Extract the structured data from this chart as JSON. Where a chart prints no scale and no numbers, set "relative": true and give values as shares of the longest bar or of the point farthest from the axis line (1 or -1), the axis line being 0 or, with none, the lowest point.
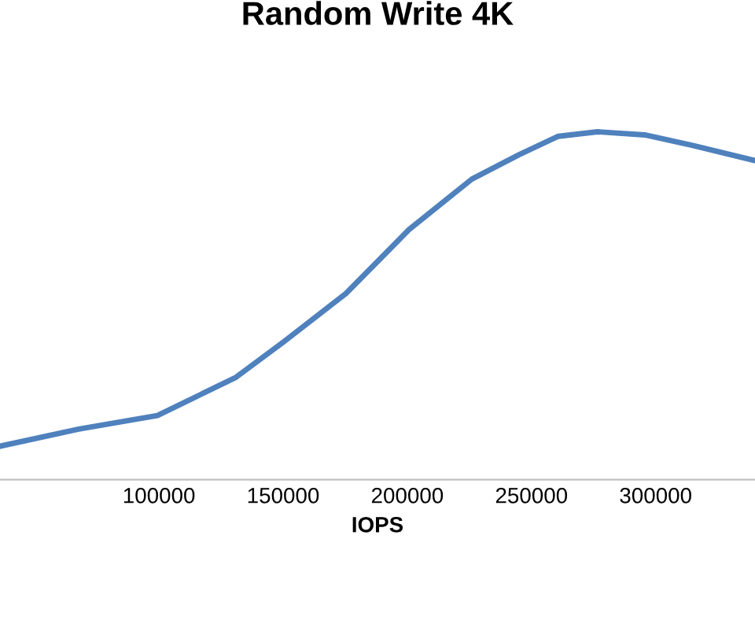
{
  "chart_data": {
    "type": "line",
    "title": "Random Write 4K",
    "xlabel": "IOPS",
    "relative": true,
    "xlim": [
      36000,
      340000
    ],
    "xticks": [
      100000,
      150000,
      200000,
      250000,
      300000
    ],
    "series": [
      {
        "color": "#4f81bd",
        "x": [
          36000,
          67700,
          99400,
          131000,
          150000,
          175300,
          200700,
          226000,
          245000,
          260800,
          276600,
          295600,
          314600,
          340000
        ],
        "values": [
          0.096,
          0.145,
          0.184,
          0.294,
          0.395,
          0.535,
          0.719,
          0.864,
          0.934,
          0.987,
          1,
          0.991,
          0.961,
          0.917
        ]
      }
    ],
    "marker": "none",
    "line_style": "solid",
    "grid": false,
    "tick_labels": "x"
  }
}
